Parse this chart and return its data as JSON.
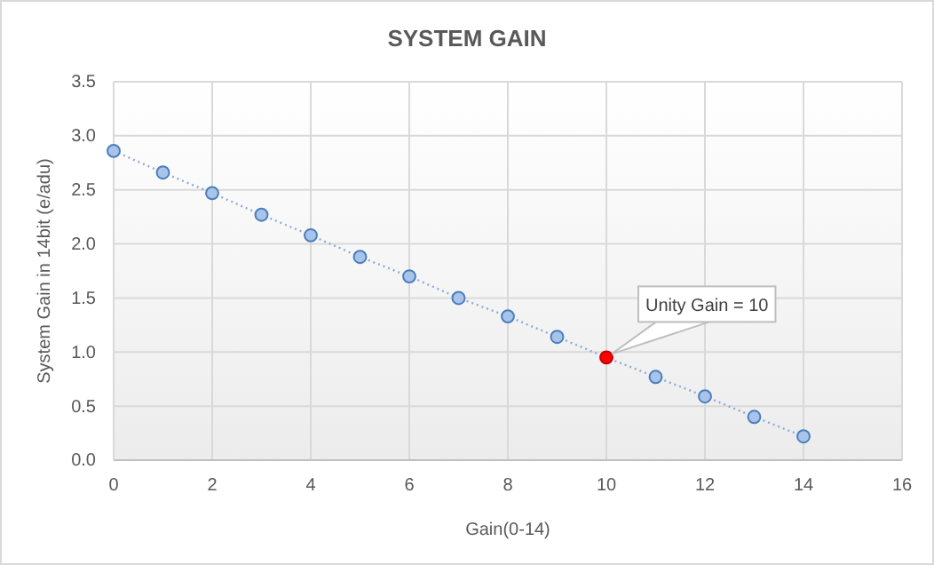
{
  "chart_data": {
    "type": "line",
    "title": "SYSTEM GAIN",
    "xlabel": "Gain(0-14)",
    "ylabel": "System Gain in 14bit (e/adu)",
    "x": [
      0,
      1,
      2,
      3,
      4,
      5,
      6,
      7,
      8,
      9,
      10,
      11,
      12,
      13,
      14
    ],
    "series": [
      {
        "color": "#8eaadb",
        "colors": [
          "#a9c4eb",
          "#a9c4eb",
          "#a9c4eb",
          "#a9c4eb",
          "#a9c4eb",
          "#a9c4eb",
          "#a9c4eb",
          "#a9c4eb",
          "#a9c4eb",
          "#a9c4eb",
          "#ff0000",
          "#a9c4eb",
          "#a9c4eb",
          "#a9c4eb",
          "#a9c4eb"
        ],
        "values": [
          2.86,
          2.66,
          2.47,
          2.27,
          2.08,
          1.88,
          1.7,
          1.5,
          1.33,
          1.14,
          0.95,
          0.77,
          0.59,
          0.4,
          0.22
        ]
      }
    ],
    "xlim": [
      0,
      16
    ],
    "xticks": [
      0,
      2,
      4,
      6,
      8,
      10,
      12,
      14,
      16
    ],
    "ylim": [
      0,
      3.5
    ],
    "yticks": [
      {
        "value": 0,
        "label": "0.0"
      },
      {
        "value": 0.5,
        "label": "0.5"
      },
      {
        "value": 1,
        "label": "1.0"
      },
      {
        "value": 1.5,
        "label": "1.5"
      },
      {
        "value": 2,
        "label": "2.0"
      },
      {
        "value": 2.5,
        "label": "2.5"
      },
      {
        "value": 3,
        "label": "3.0"
      },
      {
        "value": 3.5,
        "label": "3.5"
      }
    ],
    "grid": true,
    "marker": "circle",
    "line_style": "dotted",
    "annotations": [
      {
        "text": "Unity Gain = 10",
        "x": 10,
        "y": 0.95
      }
    ]
  }
}
